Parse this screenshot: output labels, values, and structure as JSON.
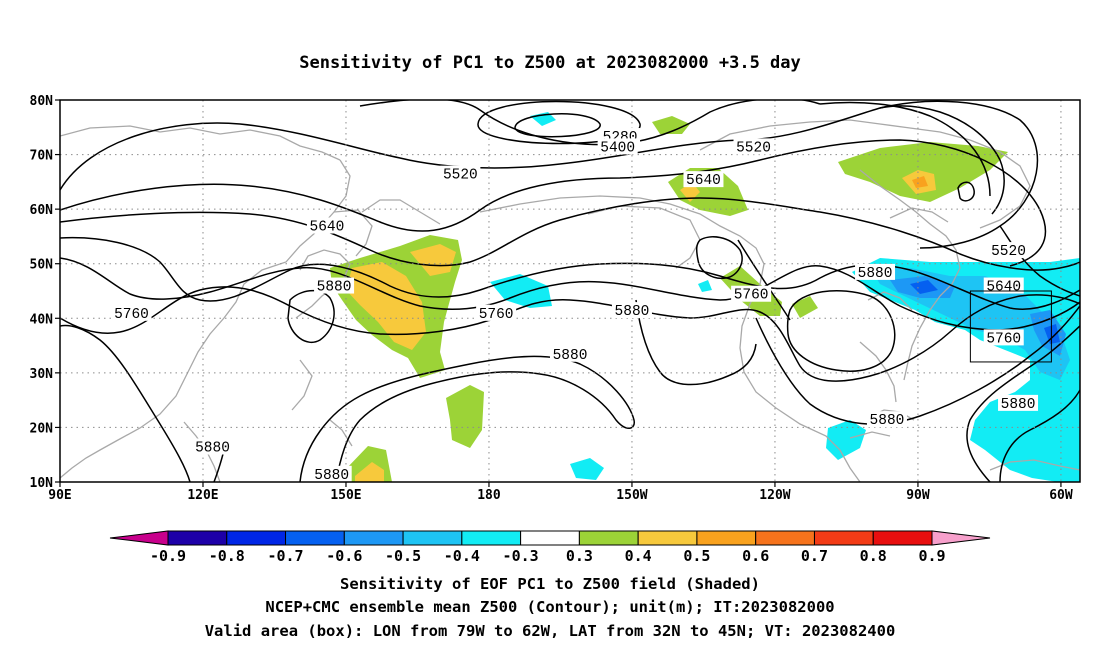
{
  "title": "Sensitivity of PC1 to Z500 at 2023082000 +3.5 day",
  "map": {
    "lon_range": [
      90,
      304
    ],
    "lat_range": [
      10,
      80
    ],
    "lon_ticks": [
      {
        "lon": 90,
        "label": "90E"
      },
      {
        "lon": 120,
        "label": "120E"
      },
      {
        "lon": 150,
        "label": "150E"
      },
      {
        "lon": 180,
        "label": "180"
      },
      {
        "lon": 210,
        "label": "150W"
      },
      {
        "lon": 240,
        "label": "120W"
      },
      {
        "lon": 270,
        "label": "90W"
      },
      {
        "lon": 300,
        "label": "60W"
      }
    ],
    "lat_ticks": [
      {
        "lat": 10,
        "label": "10N"
      },
      {
        "lat": 20,
        "label": "20N"
      },
      {
        "lat": 30,
        "label": "30N"
      },
      {
        "lat": 40,
        "label": "40N"
      },
      {
        "lat": 50,
        "label": "50N"
      },
      {
        "lat": 60,
        "label": "60N"
      },
      {
        "lat": 70,
        "label": "70N"
      },
      {
        "lat": 80,
        "label": "80N"
      }
    ],
    "grid": "dotted",
    "valid_box": {
      "lon_min": 281,
      "lon_max": 298,
      "lat_min": 32,
      "lat_max": 45
    },
    "contour_labels": [
      {
        "text": "5280",
        "lon": 207.5,
        "lat": 73.4
      },
      {
        "text": "5400",
        "lon": 207,
        "lat": 71.5
      },
      {
        "text": "5520",
        "lon": 235.5,
        "lat": 71.5
      },
      {
        "text": "5520",
        "lon": 174,
        "lat": 66.5
      },
      {
        "text": "5640",
        "lon": 225,
        "lat": 65.5
      },
      {
        "text": "5640",
        "lon": 146,
        "lat": 57
      },
      {
        "text": "5520",
        "lon": 289,
        "lat": 52.5
      },
      {
        "text": "5880",
        "lon": 261,
        "lat": 48.5
      },
      {
        "text": "5640",
        "lon": 288,
        "lat": 46
      },
      {
        "text": "5880",
        "lon": 147.5,
        "lat": 46
      },
      {
        "text": "5760",
        "lon": 235,
        "lat": 44.5
      },
      {
        "text": "5880",
        "lon": 210,
        "lat": 41.5
      },
      {
        "text": "5760",
        "lon": 105,
        "lat": 41
      },
      {
        "text": "5760",
        "lon": 181.5,
        "lat": 41
      },
      {
        "text": "5760",
        "lon": 288,
        "lat": 36.5
      },
      {
        "text": "5880",
        "lon": 197,
        "lat": 33.5
      },
      {
        "text": "5880",
        "lon": 291,
        "lat": 24.5
      },
      {
        "text": "5880",
        "lon": 263.5,
        "lat": 21.5
      },
      {
        "text": "5880",
        "lon": 122,
        "lat": 16.5
      },
      {
        "text": "5880",
        "lon": 147,
        "lat": 11.5
      }
    ]
  },
  "colorbar": {
    "labels": [
      "-0.9",
      "-0.8",
      "-0.7",
      "-0.6",
      "-0.5",
      "-0.4",
      "-0.3",
      "0.3",
      "0.4",
      "0.5",
      "0.6",
      "0.7",
      "0.8",
      "0.9"
    ],
    "colors": [
      "#1d00a8",
      "#0026e6",
      "#0560f0",
      "#1d98f5",
      "#1ec4f4",
      "#12ecf4",
      "#ffffff",
      "#9cd337",
      "#f7c93c",
      "#f9a21e",
      "#f6731c",
      "#f33b16",
      "#e80f0f"
    ],
    "low_end_color": "#c8008c",
    "high_end_color": "#f7a0cc"
  },
  "caption": {
    "line1": "Sensitivity of EOF PC1 to Z500 field (Shaded)",
    "line2": "NCEP+CMC ensemble mean Z500 (Contour); unit(m); IT:2023082000",
    "line3": "Valid area (box): LON from 79W to 62W, LAT from 32N to 45N; VT: 2023082400"
  },
  "colors": {
    "contour": "#000000",
    "coastline": "#a9a9a9",
    "grid": "#8c8c8c"
  }
}
